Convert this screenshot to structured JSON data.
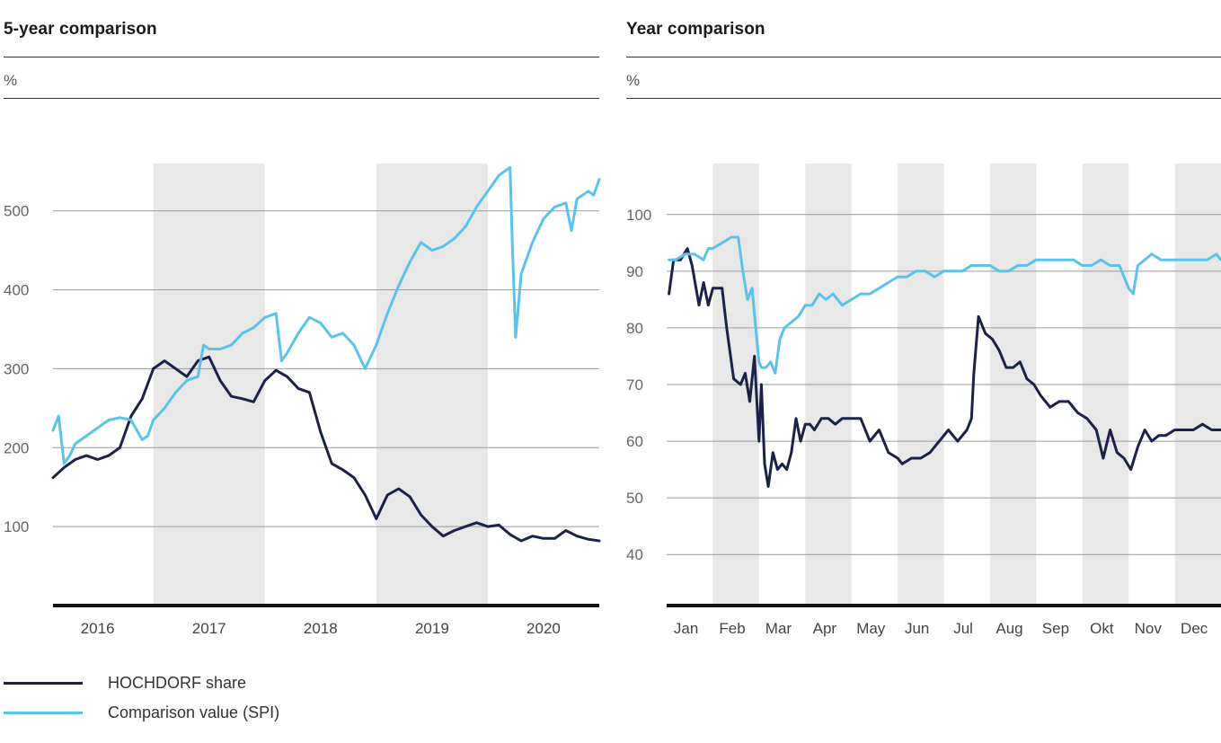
{
  "chart_data": [
    {
      "type": "line",
      "title": "5-year comparison",
      "ylabel": "%",
      "xlabel": "",
      "x_tick_labels": [
        "2016",
        "2017",
        "2018",
        "2019",
        "2020"
      ],
      "y_ticks": [
        100,
        200,
        300,
        400,
        500
      ],
      "ylim": [
        0,
        560
      ],
      "xlim": [
        2015.6,
        2020.5
      ],
      "grid": true,
      "shaded_bands": [
        [
          2016.5,
          2017.5
        ],
        [
          2018.5,
          2019.5
        ]
      ],
      "series": [
        {
          "name": "HOCHDORF share",
          "color": "#1b2248",
          "x": [
            2015.6,
            2015.7,
            2015.8,
            2015.9,
            2016.0,
            2016.1,
            2016.2,
            2016.3,
            2016.4,
            2016.5,
            2016.6,
            2016.7,
            2016.8,
            2016.9,
            2017.0,
            2017.1,
            2017.2,
            2017.3,
            2017.4,
            2017.5,
            2017.6,
            2017.7,
            2017.8,
            2017.9,
            2018.0,
            2018.1,
            2018.2,
            2018.3,
            2018.4,
            2018.5,
            2018.55,
            2018.6,
            2018.7,
            2018.8,
            2018.9,
            2019.0,
            2019.1,
            2019.2,
            2019.3,
            2019.4,
            2019.5,
            2019.6,
            2019.7,
            2019.8,
            2019.9,
            2020.0,
            2020.1,
            2020.2,
            2020.3,
            2020.4,
            2020.5
          ],
          "y": [
            162,
            175,
            185,
            190,
            185,
            190,
            200,
            240,
            262,
            300,
            310,
            300,
            290,
            310,
            315,
            285,
            265,
            262,
            258,
            285,
            298,
            290,
            275,
            270,
            220,
            180,
            172,
            162,
            140,
            110,
            125,
            140,
            148,
            138,
            115,
            100,
            88,
            95,
            100,
            105,
            100,
            102,
            90,
            82,
            88,
            85,
            85,
            95,
            88,
            84,
            82
          ]
        },
        {
          "name": "Comparison value (SPI)",
          "color": "#5bc3ea",
          "x": [
            2015.6,
            2015.65,
            2015.7,
            2015.75,
            2015.8,
            2015.9,
            2016.0,
            2016.1,
            2016.2,
            2016.3,
            2016.4,
            2016.45,
            2016.5,
            2016.6,
            2016.7,
            2016.8,
            2016.9,
            2016.95,
            2017.0,
            2017.1,
            2017.2,
            2017.3,
            2017.4,
            2017.5,
            2017.6,
            2017.65,
            2017.7,
            2017.8,
            2017.9,
            2018.0,
            2018.1,
            2018.2,
            2018.3,
            2018.4,
            2018.5,
            2018.6,
            2018.7,
            2018.8,
            2018.9,
            2019.0,
            2019.1,
            2019.2,
            2019.3,
            2019.4,
            2019.5,
            2019.6,
            2019.7,
            2019.72,
            2019.75,
            2019.8,
            2019.9,
            2020.0,
            2020.1,
            2020.2,
            2020.25,
            2020.3,
            2020.4,
            2020.45,
            2020.5
          ],
          "y": [
            222,
            240,
            180,
            190,
            205,
            215,
            225,
            235,
            238,
            235,
            210,
            215,
            235,
            250,
            270,
            285,
            290,
            330,
            325,
            325,
            330,
            345,
            352,
            365,
            370,
            310,
            320,
            345,
            365,
            358,
            340,
            345,
            330,
            300,
            330,
            370,
            405,
            435,
            460,
            450,
            455,
            465,
            480,
            505,
            525,
            545,
            555,
            460,
            340,
            420,
            460,
            490,
            505,
            510,
            475,
            515,
            525,
            520,
            540
          ]
        }
      ]
    },
    {
      "type": "line",
      "title": "Year comparison",
      "ylabel": "%",
      "xlabel": "",
      "x_tick_labels": [
        "Jan",
        "Feb",
        "Mar",
        "Apr",
        "May",
        "Jun",
        "Jul",
        "Aug",
        "Sep",
        "Okt",
        "Nov",
        "Dec"
      ],
      "y_ticks": [
        40,
        50,
        60,
        70,
        80,
        90,
        100
      ],
      "ylim": [
        31,
        109
      ],
      "xlim": [
        0,
        12
      ],
      "grid": true,
      "shaded_bands": [
        [
          1,
          2
        ],
        [
          3,
          4
        ],
        [
          5,
          6
        ],
        [
          7,
          8
        ],
        [
          9,
          10
        ],
        [
          11,
          12
        ]
      ],
      "series": [
        {
          "name": "HOCHDORF share",
          "color": "#1b2248",
          "x": [
            0.05,
            0.15,
            0.3,
            0.45,
            0.55,
            0.7,
            0.8,
            0.9,
            1.0,
            1.1,
            1.2,
            1.3,
            1.45,
            1.6,
            1.7,
            1.8,
            1.9,
            2.0,
            2.05,
            2.12,
            2.2,
            2.3,
            2.4,
            2.5,
            2.6,
            2.7,
            2.8,
            2.9,
            3.0,
            3.1,
            3.2,
            3.35,
            3.5,
            3.65,
            3.8,
            4.0,
            4.2,
            4.4,
            4.6,
            4.8,
            5.0,
            5.1,
            5.3,
            5.5,
            5.7,
            5.9,
            6.1,
            6.3,
            6.5,
            6.6,
            6.65,
            6.75,
            6.9,
            7.05,
            7.2,
            7.35,
            7.5,
            7.65,
            7.8,
            7.95,
            8.1,
            8.3,
            8.5,
            8.7,
            8.9,
            9.1,
            9.3,
            9.45,
            9.6,
            9.75,
            9.9,
            10.05,
            10.2,
            10.35,
            10.5,
            10.65,
            10.8,
            11.0,
            11.2,
            11.4,
            11.6,
            11.8,
            12.0
          ],
          "y": [
            86,
            92,
            92,
            94,
            91,
            84,
            88,
            84,
            87,
            87,
            87,
            80,
            71,
            70,
            72,
            67,
            75,
            60,
            70,
            56,
            52,
            58,
            55,
            56,
            55,
            58,
            64,
            60,
            63,
            63,
            62,
            64,
            64,
            63,
            64,
            64,
            64,
            60,
            62,
            58,
            57,
            56,
            57,
            57,
            58,
            60,
            62,
            60,
            62,
            64,
            72,
            82,
            79,
            78,
            76,
            73,
            73,
            74,
            71,
            70,
            68,
            66,
            67,
            67,
            65,
            64,
            62,
            57,
            62,
            58,
            57,
            55,
            59,
            62,
            60,
            61,
            61,
            62,
            62,
            62,
            63,
            62,
            62
          ]
        },
        {
          "name": "Comparison value (SPI)",
          "color": "#5bc3ea",
          "x": [
            0.05,
            0.2,
            0.4,
            0.6,
            0.8,
            0.9,
            1.0,
            1.2,
            1.4,
            1.55,
            1.65,
            1.75,
            1.85,
            1.95,
            2.0,
            2.05,
            2.15,
            2.25,
            2.35,
            2.45,
            2.55,
            2.7,
            2.85,
            3.0,
            3.15,
            3.3,
            3.45,
            3.6,
            3.8,
            4.0,
            4.2,
            4.4,
            4.6,
            4.8,
            5.0,
            5.2,
            5.4,
            5.6,
            5.8,
            6.0,
            6.2,
            6.4,
            6.6,
            6.8,
            7.0,
            7.2,
            7.4,
            7.6,
            7.8,
            8.0,
            8.2,
            8.4,
            8.6,
            8.8,
            9.0,
            9.2,
            9.4,
            9.6,
            9.8,
            10.0,
            10.1,
            10.2,
            10.35,
            10.5,
            10.7,
            10.9,
            11.1,
            11.3,
            11.5,
            11.7,
            11.9,
            12.0
          ],
          "y": [
            92,
            92,
            93,
            93,
            92,
            94,
            94,
            95,
            96,
            96,
            90,
            85,
            87,
            78,
            74,
            73,
            73,
            74,
            72,
            78,
            80,
            81,
            82,
            84,
            84,
            86,
            85,
            86,
            84,
            85,
            86,
            86,
            87,
            88,
            89,
            89,
            90,
            90,
            89,
            90,
            90,
            90,
            91,
            91,
            91,
            90,
            90,
            91,
            91,
            92,
            92,
            92,
            92,
            92,
            91,
            91,
            92,
            91,
            91,
            87,
            86,
            91,
            92,
            93,
            92,
            92,
            92,
            92,
            92,
            92,
            93,
            92
          ]
        }
      ]
    }
  ],
  "panels": [
    {
      "title": "5-year comparison",
      "unit": "%"
    },
    {
      "title": "Year comparison",
      "unit": "%"
    }
  ],
  "legend": [
    {
      "label": "HOCHDORF share",
      "color": "#1b2248"
    },
    {
      "label": "Comparison value (SPI)",
      "color": "#5bc3ea"
    }
  ]
}
